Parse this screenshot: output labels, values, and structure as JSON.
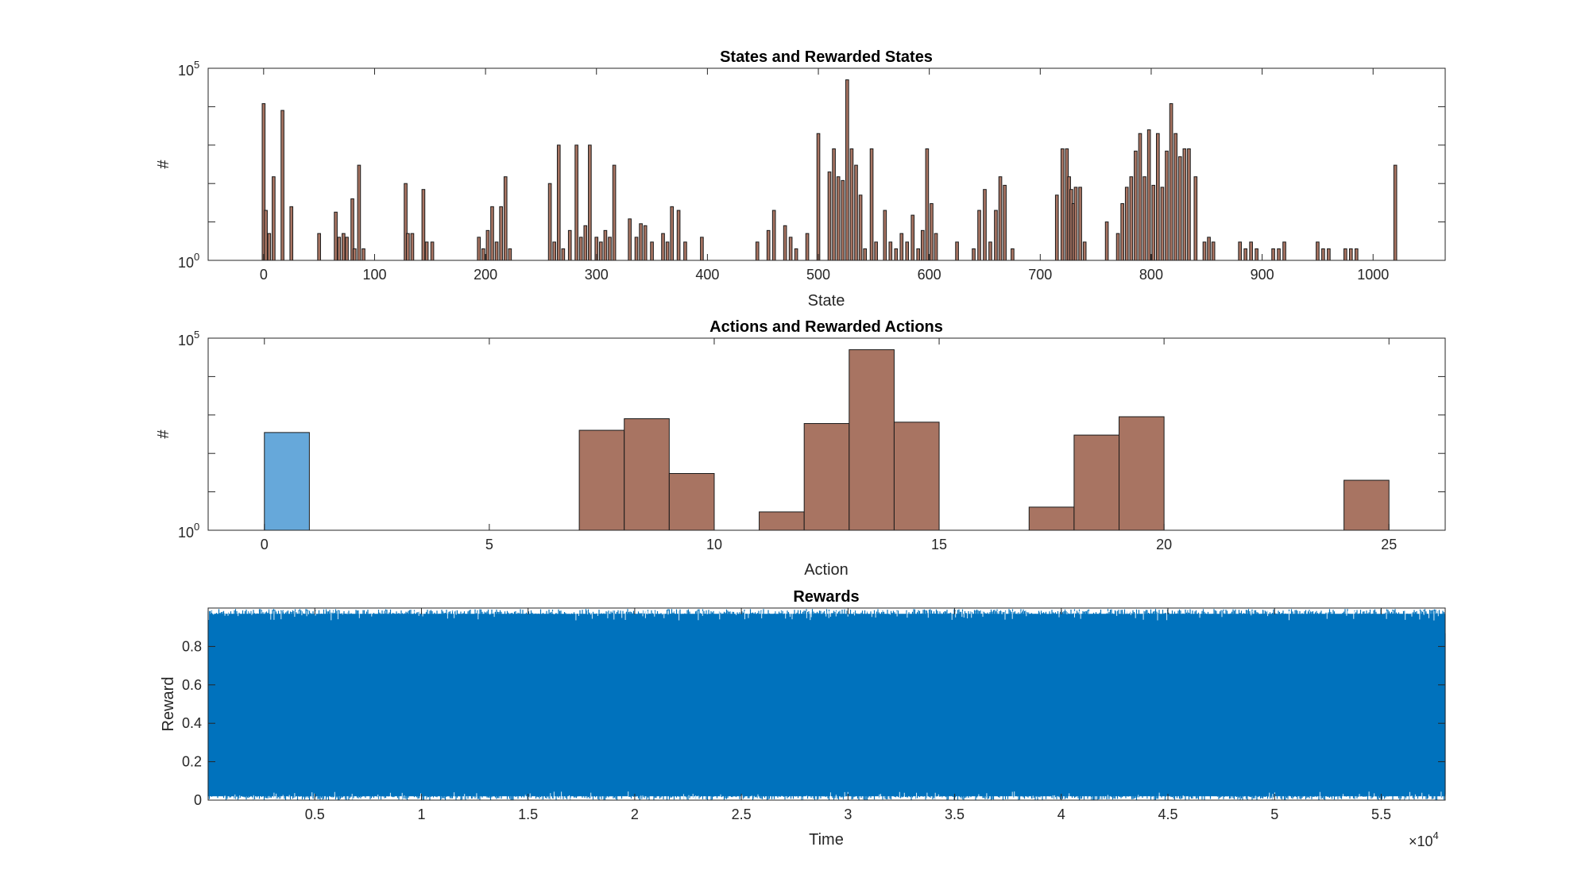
{
  "chart_data": [
    {
      "type": "bar",
      "scale": "log",
      "title": "States and Rewarded States",
      "xlabel": "State",
      "ylabel": "#",
      "xlim": [
        -50,
        1065
      ],
      "ylim": [
        1,
        100000
      ],
      "xticks": [
        "0",
        "100",
        "200",
        "300",
        "400",
        "500",
        "600",
        "700",
        "800",
        "900",
        "1000"
      ],
      "xtick_values": [
        0,
        100,
        200,
        300,
        400,
        500,
        600,
        700,
        800,
        900,
        1000
      ],
      "yticks": [
        "10",
        "10"
      ],
      "ytick_exponents": [
        "0",
        "5"
      ],
      "color": "#A87462",
      "bar_width": 2.6,
      "x": [
        0,
        2,
        5,
        9,
        17,
        25,
        50,
        65,
        68,
        72,
        75,
        80,
        82,
        86,
        90,
        128,
        130,
        134,
        144,
        147,
        152,
        194,
        198,
        202,
        206,
        210,
        214,
        218,
        222,
        258,
        262,
        266,
        270,
        276,
        282,
        286,
        290,
        294,
        300,
        304,
        308,
        312,
        316,
        330,
        336,
        340,
        344,
        350,
        360,
        364,
        368,
        374,
        380,
        395,
        445,
        455,
        460,
        470,
        475,
        480,
        490,
        500,
        510,
        514,
        518,
        522,
        526,
        530,
        534,
        538,
        542,
        548,
        552,
        560,
        565,
        570,
        575,
        580,
        585,
        590,
        594,
        598,
        602,
        606,
        625,
        640,
        645,
        650,
        655,
        660,
        664,
        668,
        675,
        715,
        720,
        724,
        726,
        728,
        730,
        732,
        736,
        740,
        760,
        770,
        774,
        778,
        782,
        786,
        790,
        794,
        798,
        802,
        806,
        810,
        814,
        818,
        822,
        826,
        830,
        834,
        840,
        848,
        852,
        856,
        880,
        885,
        890,
        895,
        910,
        915,
        920,
        950,
        955,
        960,
        975,
        980,
        985,
        1020
      ],
      "values": [
        12000,
        20,
        5,
        150,
        8000,
        25,
        5,
        18,
        4,
        5,
        4,
        40,
        2,
        300,
        2,
        100,
        5,
        5,
        70,
        3,
        3,
        4,
        2,
        6,
        25,
        3,
        25,
        150,
        2,
        100,
        3,
        1000,
        2,
        6,
        1000,
        4,
        8,
        1000,
        4,
        3,
        6,
        4,
        300,
        12,
        4,
        9,
        8,
        3,
        5,
        3,
        25,
        20,
        3,
        4,
        3,
        6,
        20,
        8,
        4,
        2,
        5,
        2000,
        200,
        800,
        150,
        120,
        50000,
        800,
        300,
        50,
        2,
        800,
        3,
        20,
        3,
        2,
        5,
        3,
        15,
        2,
        6,
        800,
        30,
        5,
        3,
        2,
        20,
        70,
        3,
        20,
        150,
        90,
        2,
        50,
        800,
        800,
        150,
        70,
        30,
        80,
        80,
        3,
        10,
        5,
        30,
        80,
        150,
        700,
        2000,
        150,
        2500,
        90,
        2000,
        80,
        700,
        12000,
        2000,
        500,
        800,
        800,
        150,
        3,
        4,
        3,
        3,
        2,
        3,
        2,
        2,
        2,
        3,
        3,
        2,
        2,
        2,
        2,
        2,
        300
      ]
    },
    {
      "type": "bar",
      "scale": "log",
      "title": "Actions and Rewarded Actions",
      "xlabel": "Action",
      "ylabel": "#",
      "xlim": [
        -1.25,
        26.25
      ],
      "ylim": [
        1,
        100000
      ],
      "xticks": [
        "0",
        "5",
        "10",
        "15",
        "20",
        "25"
      ],
      "xtick_values": [
        0,
        5,
        10,
        15,
        20,
        25
      ],
      "yticks": [
        "10",
        "10"
      ],
      "ytick_exponents": [
        "0",
        "5"
      ],
      "bin_width": 1,
      "bins_start": [
        0,
        7,
        8,
        9,
        11,
        12,
        13,
        14,
        17,
        18,
        19,
        24
      ],
      "values": [
        350,
        400,
        800,
        30,
        3,
        600,
        50000,
        650,
        4,
        300,
        900,
        20
      ],
      "colors": [
        "#66A8DA",
        "#A87462",
        "#A87462",
        "#A87462",
        "#A87462",
        "#A87462",
        "#A87462",
        "#A87462",
        "#A87462",
        "#A87462",
        "#A87462",
        "#A87462"
      ]
    },
    {
      "type": "line",
      "title": "Rewards",
      "xlabel": "Time",
      "ylabel": "Reward",
      "xlim": [
        0,
        58000
      ],
      "ylim": [
        0,
        1
      ],
      "xticks": [
        "0.5",
        "1",
        "1.5",
        "2",
        "2.5",
        "3",
        "3.5",
        "4",
        "4.5",
        "5",
        "5.5"
      ],
      "xtick_values": [
        5000,
        10000,
        15000,
        20000,
        25000,
        30000,
        35000,
        40000,
        45000,
        50000,
        55000
      ],
      "x_multiplier_base": "×10",
      "x_multiplier_exp": "4",
      "yticks": [
        "0",
        "0.2",
        "0.4",
        "0.6",
        "0.8"
      ],
      "ytick_values": [
        0,
        0.2,
        0.4,
        0.6,
        0.8
      ],
      "color": "#0072BD",
      "series_description": "dense uniform random rewards between 0 and 1 over about 57600 steps"
    }
  ]
}
